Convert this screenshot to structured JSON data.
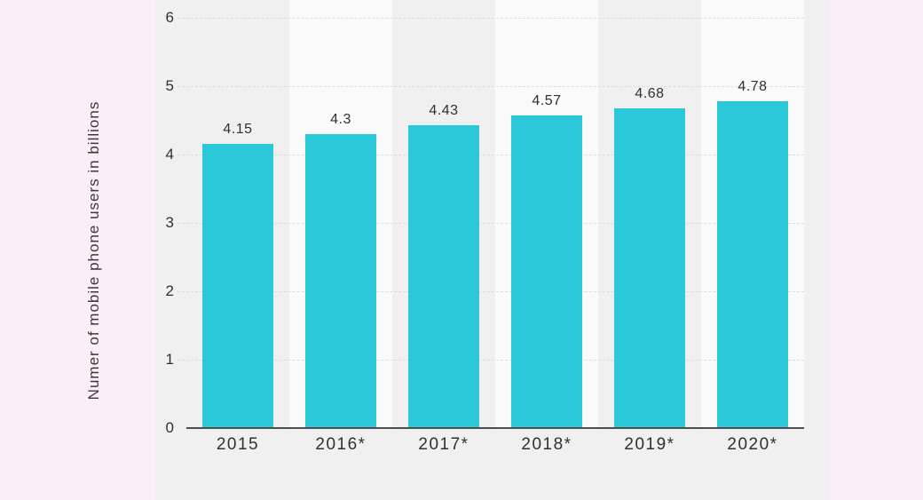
{
  "chart_data": {
    "type": "bar",
    "categories": [
      "2015",
      "2016*",
      "2017*",
      "2018*",
      "2019*",
      "2020*"
    ],
    "values": [
      4.15,
      4.3,
      4.43,
      4.57,
      4.68,
      4.78
    ],
    "value_labels": [
      "4.15",
      "4.3",
      "4.43",
      "4.57",
      "4.68",
      "4.78"
    ],
    "title": "",
    "xlabel": "",
    "ylabel": "Numer of mobile phone users in billions",
    "ylim": [
      0,
      6
    ],
    "yticks": [
      0,
      1,
      2,
      3,
      4,
      5,
      6
    ],
    "grid": "horizontal-dashed",
    "legend": "none",
    "alt_band_columns": [
      "2016*",
      "2018*",
      "2020*"
    ],
    "colors": {
      "bar": "#2bc8d9",
      "page_background": "#fceef6",
      "plot_background": "#f0f0f0",
      "alt_band": "#fafafa",
      "axis_line": "#4f4f4f",
      "gridline": "#dcdcdc",
      "text": "#303030"
    }
  }
}
